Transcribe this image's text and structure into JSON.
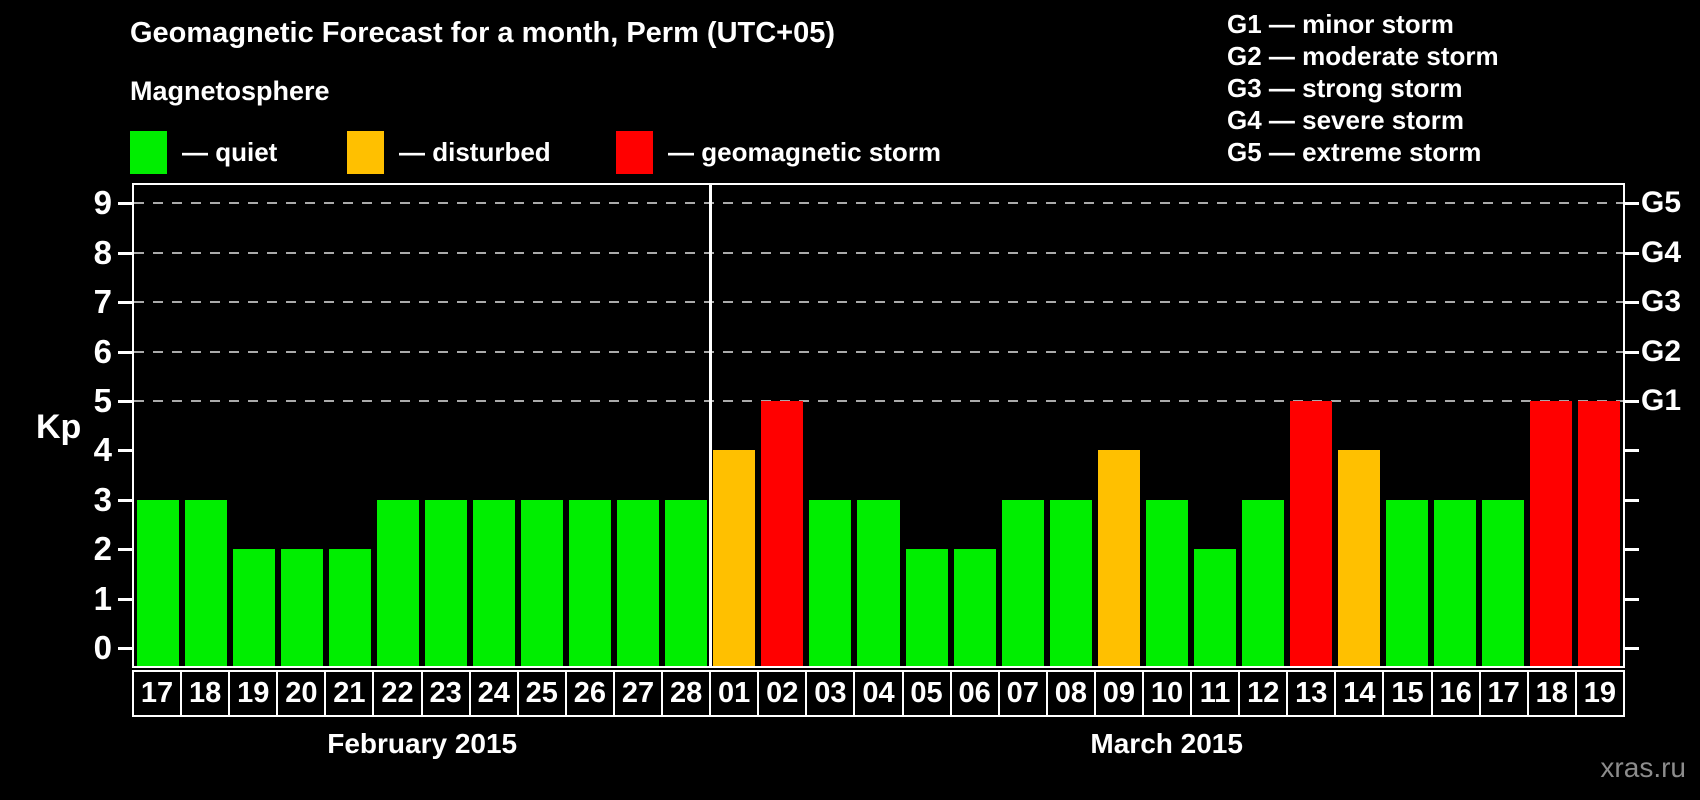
{
  "header": {
    "title": "Geomagnetic Forecast for a month, Perm (UTC+05)",
    "legend_title": "Magnetosphere",
    "legend_items": [
      {
        "name": "quiet",
        "color": "#00ee00",
        "label": "— quiet"
      },
      {
        "name": "disturbed",
        "color": "#ffc000",
        "label": "— disturbed"
      },
      {
        "name": "storm",
        "color": "#ff0000",
        "label": "— geomagnetic storm"
      }
    ],
    "storm_scale_legend": [
      "G1 — minor storm",
      "G2 — moderate storm",
      "G3 — strong storm",
      "G4 — severe storm",
      "G5 — extreme storm"
    ]
  },
  "watermark": "xras.ru",
  "chart_data": {
    "type": "bar",
    "title": "Geomagnetic Forecast for a month, Perm (UTC+05)",
    "ylabel": "Kp",
    "ylim": [
      0,
      9
    ],
    "yticks": [
      0,
      1,
      2,
      3,
      4,
      5,
      6,
      7,
      8,
      9
    ],
    "gridlines_kp": [
      5,
      6,
      7,
      8,
      9
    ],
    "grid": "dashed-horizontal-at-storm-levels",
    "legend_position": "top",
    "right_axis": [
      {
        "kp": 5,
        "label": "G1"
      },
      {
        "kp": 6,
        "label": "G2"
      },
      {
        "kp": 7,
        "label": "G3"
      },
      {
        "kp": 8,
        "label": "G4"
      },
      {
        "kp": 9,
        "label": "G5"
      }
    ],
    "status_colors": {
      "quiet": "#00ee00",
      "disturbed": "#ffc000",
      "storm": "#ff0000"
    },
    "months": [
      {
        "label": "February 2015",
        "start_index": 0,
        "days_count": 12
      },
      {
        "label": "March 2015",
        "start_index": 12,
        "days_count": 19
      }
    ],
    "days": [
      {
        "day": "17",
        "kp": 3,
        "status": "quiet"
      },
      {
        "day": "18",
        "kp": 3,
        "status": "quiet"
      },
      {
        "day": "19",
        "kp": 2,
        "status": "quiet"
      },
      {
        "day": "20",
        "kp": 2,
        "status": "quiet"
      },
      {
        "day": "21",
        "kp": 2,
        "status": "quiet"
      },
      {
        "day": "22",
        "kp": 3,
        "status": "quiet"
      },
      {
        "day": "23",
        "kp": 3,
        "status": "quiet"
      },
      {
        "day": "24",
        "kp": 3,
        "status": "quiet"
      },
      {
        "day": "25",
        "kp": 3,
        "status": "quiet"
      },
      {
        "day": "26",
        "kp": 3,
        "status": "quiet"
      },
      {
        "day": "27",
        "kp": 3,
        "status": "quiet"
      },
      {
        "day": "28",
        "kp": 3,
        "status": "quiet"
      },
      {
        "day": "01",
        "kp": 4,
        "status": "disturbed"
      },
      {
        "day": "02",
        "kp": 5,
        "status": "storm"
      },
      {
        "day": "03",
        "kp": 3,
        "status": "quiet"
      },
      {
        "day": "04",
        "kp": 3,
        "status": "quiet"
      },
      {
        "day": "05",
        "kp": 2,
        "status": "quiet"
      },
      {
        "day": "06",
        "kp": 2,
        "status": "quiet"
      },
      {
        "day": "07",
        "kp": 3,
        "status": "quiet"
      },
      {
        "day": "08",
        "kp": 3,
        "status": "quiet"
      },
      {
        "day": "09",
        "kp": 4,
        "status": "disturbed"
      },
      {
        "day": "10",
        "kp": 3,
        "status": "quiet"
      },
      {
        "day": "11",
        "kp": 2,
        "status": "quiet"
      },
      {
        "day": "12",
        "kp": 3,
        "status": "quiet"
      },
      {
        "day": "13",
        "kp": 5,
        "status": "storm"
      },
      {
        "day": "14",
        "kp": 4,
        "status": "disturbed"
      },
      {
        "day": "15",
        "kp": 3,
        "status": "quiet"
      },
      {
        "day": "16",
        "kp": 3,
        "status": "quiet"
      },
      {
        "day": "17",
        "kp": 3,
        "status": "quiet"
      },
      {
        "day": "18",
        "kp": 5,
        "status": "storm"
      },
      {
        "day": "19",
        "kp": 5,
        "status": "storm"
      }
    ]
  }
}
